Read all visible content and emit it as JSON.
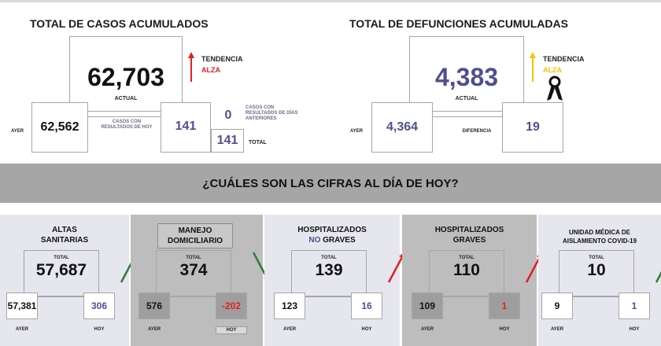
{
  "accumulated_cases": {
    "title": "TOTAL DE CASOS ACUMULADOS",
    "current_value": "62,703",
    "current_label": "ACTUAL",
    "trend_label": "TENDENCIA",
    "trend_value": "ALZA",
    "yesterday_label": "AYER",
    "yesterday_value": "62,562",
    "today_results_label": "CASOS CON RESULTADOS DE HOY",
    "today_results_value": "141",
    "previous_days_label": "CASOS CON RESULTADOS DE DÍAS ANTERIORES",
    "previous_days_value": "0",
    "total_label": "TOTAL",
    "total_value": "141"
  },
  "accumulated_deaths": {
    "title": "TOTAL DE DEFUNCIONES ACUMULADAS",
    "current_value": "4,383",
    "current_label": "ACTUAL",
    "trend_label": "TENDENCIA",
    "trend_value": "ALZA",
    "yesterday_label": "AYER",
    "yesterday_value": "4,364",
    "difference_label": "DIFERENCIA",
    "difference_value": "19"
  },
  "banner": {
    "question": "¿CUÁLES SON LAS CIFRAS AL DÍA DE HOY?"
  },
  "panels": [
    {
      "title_line1": "ALTAS",
      "title_line2": "SANITARIAS",
      "total_label": "TOTAL",
      "total_value": "57,687",
      "yesterday_label": "AYER",
      "yesterday_value": "57,381",
      "today_label": "HOY",
      "today_value": "306",
      "trend": "up-green"
    },
    {
      "title_line1": "MANEJO",
      "title_line2": "DOMICILIARIO",
      "total_label": "TOTAL",
      "total_value": "374",
      "yesterday_label": "AYER",
      "yesterday_value": "576",
      "today_label": "HOY",
      "today_value": "-202",
      "trend": "down-green"
    },
    {
      "title_line1": "HOSPITALIZADOS",
      "title_line2_prefix": "NO",
      "title_line2": "GRAVES",
      "total_label": "TOTAL",
      "total_value": "139",
      "yesterday_label": "AYER",
      "yesterday_value": "123",
      "today_label": "HOY",
      "today_value": "16",
      "trend": "up-red"
    },
    {
      "title_line1": "HOSPITALIZADOS",
      "title_line2": "GRAVES",
      "total_label": "TOTAL",
      "total_value": "110",
      "yesterday_label": "AYER",
      "yesterday_value": "109",
      "today_label": "HOY",
      "today_value": "1",
      "trend": "up-red"
    },
    {
      "title_line1": "UNIDAD MÉDICA DE",
      "title_line2": "AISLAMIENTO COVID-19",
      "total_label": "TOTAL",
      "total_value": "10",
      "yesterday_label": "AYER",
      "yesterday_value": "9",
      "today_label": "HOY",
      "today_value": "1",
      "trend": "up-green"
    }
  ],
  "colors": {
    "red": "#e02020",
    "yellow": "#f5c400",
    "green": "#2e7d32",
    "purple_value": "#4f4f8f",
    "panel_bg_light": "#e6e6ee",
    "panel_bg_dark": "#bdbdbd"
  }
}
